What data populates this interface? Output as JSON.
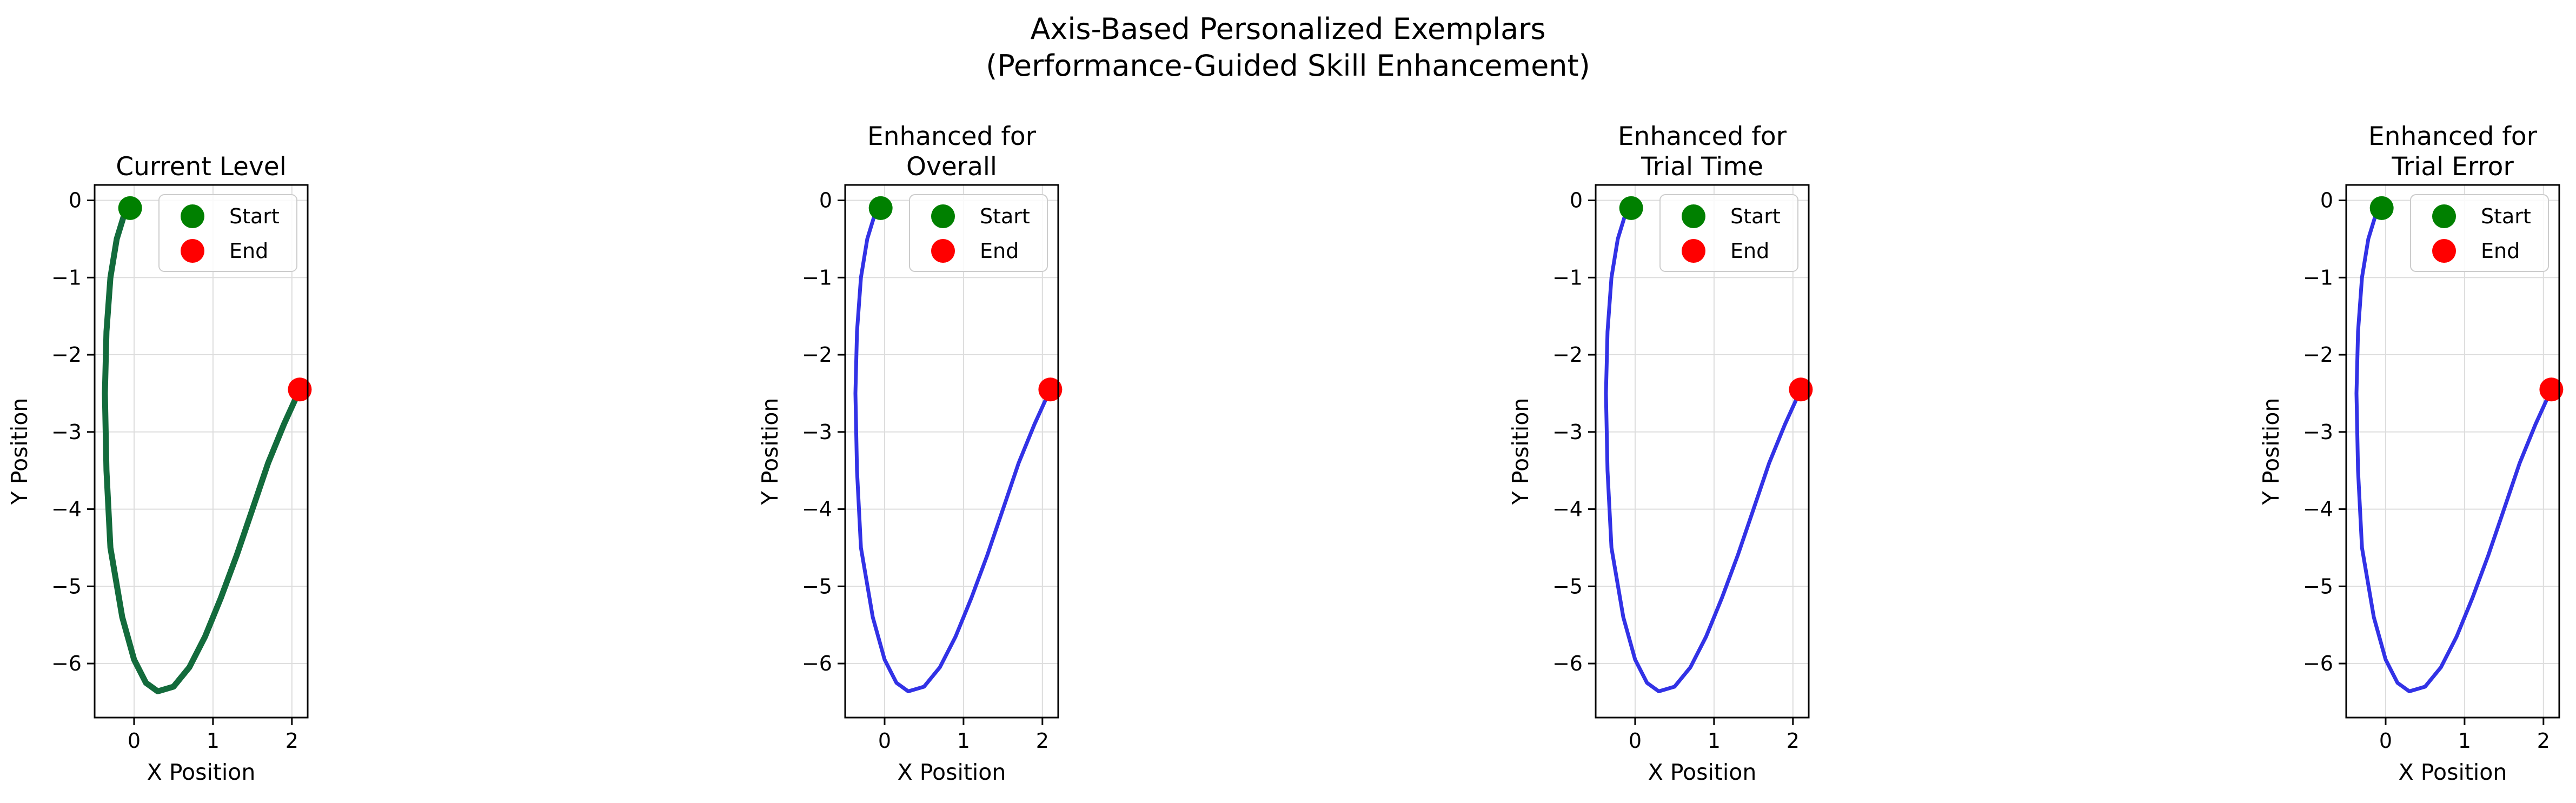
{
  "figure": {
    "title_line1": "Axis-Based Personalized Exemplars",
    "title_line2": "(Performance-Guided Skill Enhancement)"
  },
  "chart_data": [
    {
      "type": "line",
      "title_lines": [
        "Current Level"
      ],
      "xlabel": "X Position",
      "ylabel": "Y Position",
      "xlim": [
        -0.5,
        2.2
      ],
      "ylim": [
        -6.7,
        0.2
      ],
      "xticks": [
        0,
        1,
        2
      ],
      "yticks": [
        0,
        -1,
        -2,
        -3,
        -4,
        -5,
        -6
      ],
      "grid": true,
      "line_color": "#136b3c",
      "line_width": "thick",
      "x": [
        -0.1,
        -0.22,
        -0.3,
        -0.35,
        -0.37,
        -0.35,
        -0.3,
        -0.15,
        0.0,
        0.15,
        0.3,
        0.5,
        0.7,
        0.9,
        1.1,
        1.3,
        1.5,
        1.7,
        1.9,
        2.1
      ],
      "y": [
        -0.1,
        -0.5,
        -1.0,
        -1.7,
        -2.5,
        -3.5,
        -4.5,
        -5.4,
        -5.95,
        -6.25,
        -6.36,
        -6.3,
        -6.05,
        -5.65,
        -5.15,
        -4.6,
        -4.0,
        -3.4,
        -2.9,
        -2.45
      ],
      "start": {
        "x": -0.05,
        "y": -0.1
      },
      "end": {
        "x": 2.1,
        "y": -2.45
      },
      "legend": {
        "loc": "upper-right",
        "entries": [
          {
            "label": "Start",
            "color": "#008000"
          },
          {
            "label": "End",
            "color": "#ff0000"
          }
        ]
      }
    },
    {
      "type": "line",
      "title_lines": [
        "Enhanced for",
        "Overall"
      ],
      "xlabel": "X Position",
      "ylabel": "Y Position",
      "xlim": [
        -0.5,
        2.2
      ],
      "ylim": [
        -6.7,
        0.2
      ],
      "xticks": [
        0,
        1,
        2
      ],
      "yticks": [
        0,
        -1,
        -2,
        -3,
        -4,
        -5,
        -6
      ],
      "grid": true,
      "line_color": "#3232e6",
      "line_width": "normal",
      "x": [
        -0.1,
        -0.22,
        -0.3,
        -0.35,
        -0.37,
        -0.35,
        -0.3,
        -0.15,
        0.0,
        0.15,
        0.3,
        0.5,
        0.7,
        0.9,
        1.1,
        1.3,
        1.5,
        1.7,
        1.9,
        2.1
      ],
      "y": [
        -0.1,
        -0.5,
        -1.0,
        -1.7,
        -2.5,
        -3.5,
        -4.5,
        -5.4,
        -5.95,
        -6.25,
        -6.36,
        -6.3,
        -6.05,
        -5.65,
        -5.15,
        -4.6,
        -4.0,
        -3.4,
        -2.9,
        -2.45
      ],
      "start": {
        "x": -0.05,
        "y": -0.1
      },
      "end": {
        "x": 2.1,
        "y": -2.45
      },
      "legend": {
        "loc": "upper-right",
        "entries": [
          {
            "label": "Start",
            "color": "#008000"
          },
          {
            "label": "End",
            "color": "#ff0000"
          }
        ]
      }
    },
    {
      "type": "line",
      "title_lines": [
        "Enhanced for",
        "Trial Time"
      ],
      "xlabel": "X Position",
      "ylabel": "Y Position",
      "xlim": [
        -0.5,
        2.2
      ],
      "ylim": [
        -6.7,
        0.2
      ],
      "xticks": [
        0,
        1,
        2
      ],
      "yticks": [
        0,
        -1,
        -2,
        -3,
        -4,
        -5,
        -6
      ],
      "grid": true,
      "line_color": "#3232e6",
      "line_width": "normal",
      "x": [
        -0.1,
        -0.22,
        -0.3,
        -0.35,
        -0.37,
        -0.35,
        -0.3,
        -0.15,
        0.0,
        0.15,
        0.3,
        0.5,
        0.7,
        0.9,
        1.1,
        1.3,
        1.5,
        1.7,
        1.9,
        2.1
      ],
      "y": [
        -0.1,
        -0.5,
        -1.0,
        -1.7,
        -2.5,
        -3.5,
        -4.5,
        -5.4,
        -5.95,
        -6.25,
        -6.36,
        -6.3,
        -6.05,
        -5.65,
        -5.15,
        -4.6,
        -4.0,
        -3.4,
        -2.9,
        -2.45
      ],
      "start": {
        "x": -0.05,
        "y": -0.1
      },
      "end": {
        "x": 2.1,
        "y": -2.45
      },
      "legend": {
        "loc": "upper-right",
        "entries": [
          {
            "label": "Start",
            "color": "#008000"
          },
          {
            "label": "End",
            "color": "#ff0000"
          }
        ]
      }
    },
    {
      "type": "line",
      "title_lines": [
        "Enhanced for",
        "Trial Error"
      ],
      "xlabel": "X Position",
      "ylabel": "Y Position",
      "xlim": [
        -0.5,
        2.2
      ],
      "ylim": [
        -6.7,
        0.2
      ],
      "xticks": [
        0,
        1,
        2
      ],
      "yticks": [
        0,
        -1,
        -2,
        -3,
        -4,
        -5,
        -6
      ],
      "grid": true,
      "line_color": "#3232e6",
      "line_width": "normal",
      "x": [
        -0.1,
        -0.22,
        -0.3,
        -0.35,
        -0.37,
        -0.35,
        -0.3,
        -0.15,
        0.0,
        0.15,
        0.3,
        0.5,
        0.7,
        0.9,
        1.1,
        1.3,
        1.5,
        1.7,
        1.9,
        2.1
      ],
      "y": [
        -0.1,
        -0.5,
        -1.0,
        -1.7,
        -2.5,
        -3.5,
        -4.5,
        -5.4,
        -5.95,
        -6.25,
        -6.36,
        -6.3,
        -6.05,
        -5.65,
        -5.15,
        -4.6,
        -4.0,
        -3.4,
        -2.9,
        -2.45
      ],
      "start": {
        "x": -0.05,
        "y": -0.1
      },
      "end": {
        "x": 2.1,
        "y": -2.45
      },
      "legend": {
        "loc": "upper-right",
        "entries": [
          {
            "label": "Start",
            "color": "#008000"
          },
          {
            "label": "End",
            "color": "#ff0000"
          }
        ]
      }
    }
  ]
}
